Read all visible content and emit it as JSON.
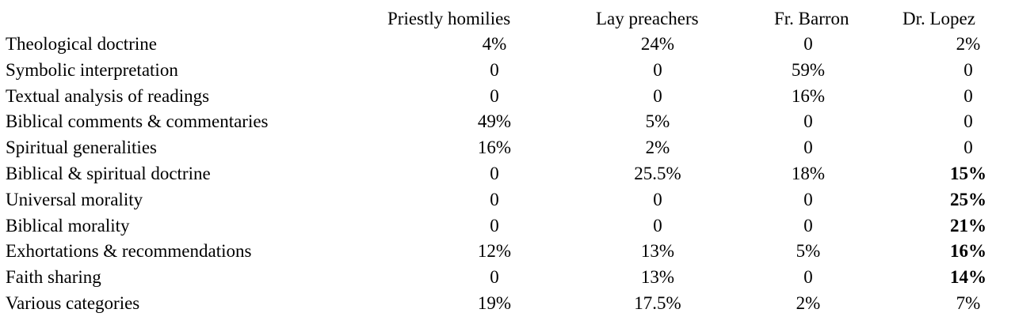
{
  "table": {
    "columns": [
      "Priestly homilies",
      "Lay preachers",
      "Fr. Barron",
      "Dr. Lopez"
    ],
    "rows": [
      {
        "label": "Theological doctrine",
        "values": [
          "4%",
          "24%",
          "0",
          "2%"
        ],
        "bold": [
          false,
          false,
          false,
          false
        ]
      },
      {
        "label": "Symbolic interpretation",
        "values": [
          "0",
          "0",
          "59%",
          "0"
        ],
        "bold": [
          false,
          false,
          false,
          false
        ]
      },
      {
        "label": "Textual analysis of readings",
        "values": [
          "0",
          "0",
          "16%",
          "0"
        ],
        "bold": [
          false,
          false,
          false,
          false
        ]
      },
      {
        "label": "Biblical comments & commentaries",
        "values": [
          "49%",
          "5%",
          "0",
          "0"
        ],
        "bold": [
          false,
          false,
          false,
          false
        ]
      },
      {
        "label": "Spiritual generalities",
        "values": [
          "16%",
          "2%",
          "0",
          "0"
        ],
        "bold": [
          false,
          false,
          false,
          false
        ]
      },
      {
        "label": "Biblical & spiritual doctrine",
        "values": [
          "0",
          "25.5%",
          "18%",
          "15%"
        ],
        "bold": [
          false,
          false,
          false,
          true
        ]
      },
      {
        "label": "Universal morality",
        "values": [
          "0",
          "0",
          "0",
          "25%"
        ],
        "bold": [
          false,
          false,
          false,
          true
        ]
      },
      {
        "label": "Biblical morality",
        "values": [
          "0",
          "0",
          "0",
          "21%"
        ],
        "bold": [
          false,
          false,
          false,
          true
        ]
      },
      {
        "label": "Exhortations & recommendations",
        "values": [
          "12%",
          "13%",
          "5%",
          "16%"
        ],
        "bold": [
          false,
          false,
          false,
          true
        ]
      },
      {
        "label": "Faith sharing",
        "values": [
          "0",
          "13%",
          "0",
          "14%"
        ],
        "bold": [
          false,
          false,
          false,
          true
        ]
      },
      {
        "label": "Various categories",
        "values": [
          "19%",
          "17.5%",
          "2%",
          "7%"
        ],
        "bold": [
          false,
          false,
          false,
          false
        ]
      }
    ]
  }
}
